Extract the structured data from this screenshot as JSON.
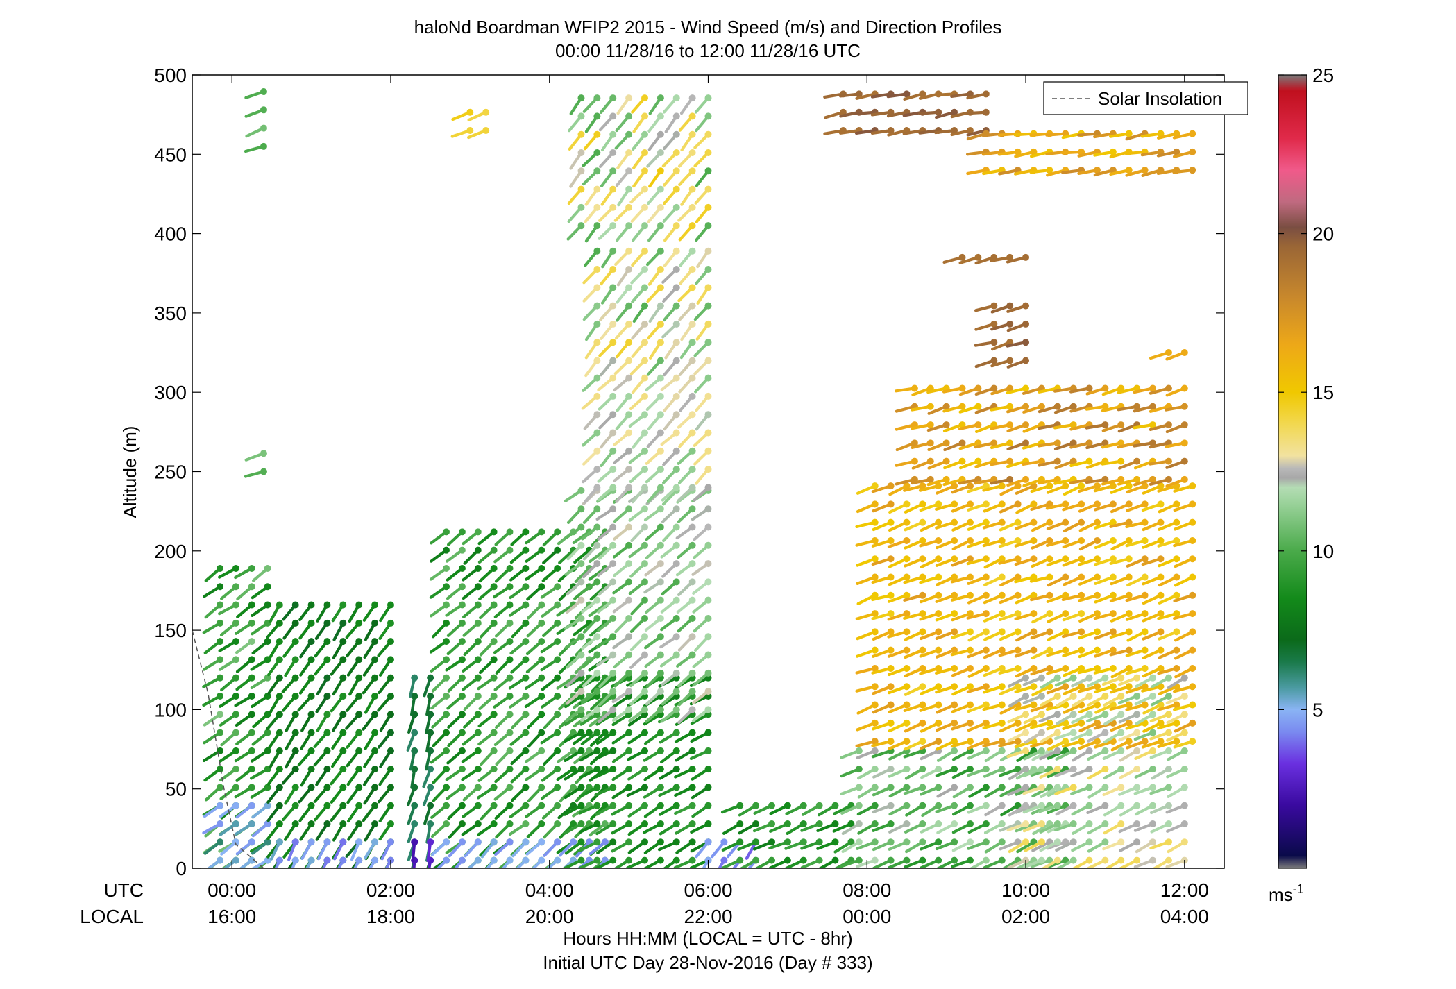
{
  "chart_data": {
    "type": "wind_barb_profile",
    "title": "haloNd Boardman WFIP2 2015 - Wind Speed (m/s) and Direction Profiles",
    "subtitle": "00:00 11/28/16 to 12:00 11/28/16  UTC",
    "ylabel": "Altitude (m)",
    "ylim": [
      0,
      500
    ],
    "y_ticks": [
      "0",
      "50",
      "100",
      "150",
      "200",
      "250",
      "300",
      "350",
      "400",
      "450",
      "500"
    ],
    "xlim_hours": [
      -0.5,
      12.5
    ],
    "x_ticks_utc": [
      "00:00",
      "02:00",
      "04:00",
      "06:00",
      "08:00",
      "10:00",
      "12:00"
    ],
    "x_ticks_local": [
      "16:00",
      "18:00",
      "20:00",
      "22:00",
      "00:00",
      "02:00",
      "04:00"
    ],
    "x_row_labels": {
      "utc": "UTC",
      "local": "LOCAL"
    },
    "xlabel": "Hours HH:MM  (LOCAL = UTC - 8hr)",
    "xlabel2": "Initial UTC Day 28-Nov-2016 (Day # 333)",
    "legend": {
      "entry": "Solar Insolation",
      "position": "top-right"
    },
    "colorbar": {
      "range": [
        0,
        25
      ],
      "ticks": [
        "5",
        "10",
        "15",
        "20",
        "25"
      ],
      "unit_base": "ms",
      "unit_exp": "-1",
      "stops": [
        {
          "v": 0,
          "c": "#7a7a7a"
        },
        {
          "v": 0.4,
          "c": "#0a0a4a"
        },
        {
          "v": 2,
          "c": "#3a0aa0"
        },
        {
          "v": 3.3,
          "c": "#6a30e0"
        },
        {
          "v": 4.3,
          "c": "#7a8af0"
        },
        {
          "v": 5,
          "c": "#8ab4f4"
        },
        {
          "v": 5.7,
          "c": "#4a9aa0"
        },
        {
          "v": 6.5,
          "c": "#1a7a4a"
        },
        {
          "v": 7.2,
          "c": "#0b6a1a"
        },
        {
          "v": 8.5,
          "c": "#138a1a"
        },
        {
          "v": 10,
          "c": "#4aaa4a"
        },
        {
          "v": 11.5,
          "c": "#9ad29a"
        },
        {
          "v": 12,
          "c": "#b4dcb4"
        },
        {
          "v": 12.3,
          "c": "#a8a8a8"
        },
        {
          "v": 12.6,
          "c": "#b8b8b8"
        },
        {
          "v": 13,
          "c": "#f2e2a0"
        },
        {
          "v": 14,
          "c": "#f2d850"
        },
        {
          "v": 15,
          "c": "#f0c800"
        },
        {
          "v": 16.5,
          "c": "#eda818"
        },
        {
          "v": 18,
          "c": "#c8882c"
        },
        {
          "v": 19.6,
          "c": "#9a6636"
        },
        {
          "v": 20.2,
          "c": "#7a4e42"
        },
        {
          "v": 21,
          "c": "#c06a80"
        },
        {
          "v": 22,
          "c": "#f05a8a"
        },
        {
          "v": 23,
          "c": "#e02a4a"
        },
        {
          "v": 24.5,
          "c": "#c0101e"
        },
        {
          "v": 25,
          "c": "#7a7a7a"
        }
      ]
    },
    "solar_insolation_line": [
      [
        -0.5,
        150
      ],
      [
        -0.3,
        110
      ],
      [
        -0.1,
        50
      ],
      [
        0.05,
        15
      ],
      [
        0.4,
        0
      ]
    ],
    "regions": [
      {
        "t": [
          -0.15,
          0.45
        ],
        "z": [
          5,
          200
        ],
        "ws": [
          8,
          11
        ],
        "dir": 235
      },
      {
        "t": [
          -0.15,
          0.45
        ],
        "z": [
          5,
          40
        ],
        "ws": [
          4.5,
          6.5
        ],
        "dir": 235
      },
      {
        "t": [
          0.4,
          0.45
        ],
        "z": [
          455,
          490
        ],
        "ws": [
          10,
          11
        ],
        "dir": 250
      },
      {
        "t": [
          0.4,
          0.45
        ],
        "z": [
          250,
          270
        ],
        "ws": [
          10,
          11
        ],
        "dir": 250
      },
      {
        "t": [
          0.6,
          2.15
        ],
        "z": [
          5,
          175
        ],
        "ws": [
          7,
          9
        ],
        "dir": 215
      },
      {
        "t": [
          0.6,
          2.15
        ],
        "z": [
          5,
          20
        ],
        "ws": [
          4,
          5.5
        ],
        "dir": 205
      },
      {
        "t": [
          2.3,
          2.55
        ],
        "z": [
          5,
          130
        ],
        "ws": [
          6,
          7
        ],
        "dir": 195
      },
      {
        "t": [
          2.3,
          2.55
        ],
        "z": [
          5,
          20
        ],
        "ws": [
          2,
          3
        ],
        "dir": 185
      },
      {
        "t": [
          2.7,
          4.7
        ],
        "z": [
          5,
          215
        ],
        "ws": [
          8,
          10.5
        ],
        "dir": 230
      },
      {
        "t": [
          2.7,
          4.7
        ],
        "z": [
          5,
          25
        ],
        "ws": [
          4.3,
          5.2
        ],
        "dir": 225
      },
      {
        "t": [
          3.0,
          3.3
        ],
        "z": [
          465,
          480
        ],
        "ws": [
          14,
          15
        ],
        "dir": 245
      },
      {
        "t": [
          4.4,
          6.1
        ],
        "z": [
          5,
          120
        ],
        "ws": [
          8,
          9.5
        ],
        "dir": 240
      },
      {
        "t": [
          4.4,
          6.1
        ],
        "z": [
          100,
          245
        ],
        "ws": [
          10,
          12.8
        ],
        "dir": 230
      },
      {
        "t": [
          4.6,
          6.1
        ],
        "z": [
          240,
          310
        ],
        "ws": [
          11,
          13.5
        ],
        "dir": 225
      },
      {
        "t": [
          4.6,
          6.1
        ],
        "z": [
          320,
          390
        ],
        "ws": [
          10,
          14.5
        ],
        "dir": 220
      },
      {
        "t": [
          4.4,
          6.1
        ],
        "z": [
          405,
          495
        ],
        "ws": [
          10,
          15
        ],
        "dir": 220
      },
      {
        "t": [
          6.0,
          6.6
        ],
        "z": [
          5,
          25
        ],
        "ws": [
          3.5,
          5
        ],
        "dir": 215
      },
      {
        "t": [
          6.4,
          7.8
        ],
        "z": [
          5,
          50
        ],
        "ws": [
          8,
          10
        ],
        "dir": 245
      },
      {
        "t": [
          7.9,
          10.6
        ],
        "z": [
          5,
          80
        ],
        "ws": [
          9,
          12.5
        ],
        "dir": 245
      },
      {
        "t": [
          8.1,
          12.1
        ],
        "z": [
          80,
          245
        ],
        "ws": [
          14.5,
          17
        ],
        "dir": 250
      },
      {
        "t": [
          8.6,
          12.1
        ],
        "z": [
          245,
          305
        ],
        "ws": [
          15,
          19
        ],
        "dir": 255
      },
      {
        "t": [
          10.0,
          12.1
        ],
        "z": [
          5,
          130
        ],
        "ws": [
          11,
          14
        ],
        "dir": 245
      },
      {
        "t": [
          9.6,
          10.1
        ],
        "z": [
          320,
          355
        ],
        "ws": [
          19,
          20
        ],
        "dir": 255
      },
      {
        "t": [
          11.8,
          12.1
        ],
        "z": [
          325,
          330
        ],
        "ws": [
          16,
          16.5
        ],
        "dir": 255
      },
      {
        "t": [
          9.2,
          10.1
        ],
        "z": [
          385,
          390
        ],
        "ws": [
          19,
          19.5
        ],
        "dir": 255
      },
      {
        "t": [
          7.7,
          9.5
        ],
        "z": [
          465,
          490
        ],
        "ws": [
          19,
          20
        ],
        "dir": 260
      },
      {
        "t": [
          9.5,
          12.1
        ],
        "z": [
          440,
          465
        ],
        "ws": [
          15,
          18
        ],
        "dir": 260
      }
    ]
  }
}
